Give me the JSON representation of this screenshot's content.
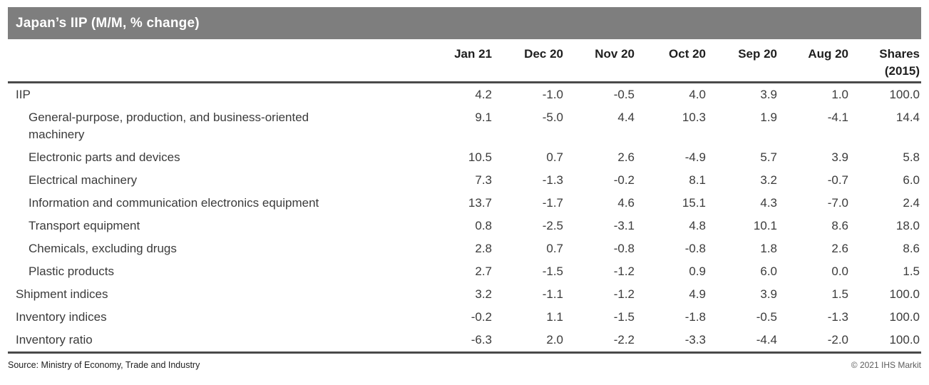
{
  "title": "Japan’s IIP (M/M, % change)",
  "colors": {
    "title_bar_bg": "#7e7e7e",
    "title_text": "#ffffff",
    "rule": "#4a4a4a",
    "body_text": "#3b3b3b"
  },
  "footer": {
    "source": "Source: Ministry of Economy, Trade and Industry",
    "copyright": "© 2021 IHS Markit"
  },
  "chart_data": {
    "type": "table",
    "title": "Japan’s IIP (M/M, % change)",
    "columns": [
      {
        "label": "Jan 21",
        "sublabel": ""
      },
      {
        "label": "Dec 20",
        "sublabel": ""
      },
      {
        "label": "Nov 20",
        "sublabel": ""
      },
      {
        "label": "Oct 20",
        "sublabel": ""
      },
      {
        "label": "Sep 20",
        "sublabel": ""
      },
      {
        "label": "Aug 20",
        "sublabel": ""
      },
      {
        "label": "Shares",
        "sublabel": "(2015)"
      }
    ],
    "rows": [
      {
        "label": "IIP",
        "indent": false,
        "values": [
          "4.2",
          "-1.0",
          "-0.5",
          "4.0",
          "3.9",
          "1.0",
          "100.0"
        ]
      },
      {
        "label": "General-purpose, production, and business-oriented machinery",
        "indent": true,
        "values": [
          "9.1",
          "-5.0",
          "4.4",
          "10.3",
          "1.9",
          "-4.1",
          "14.4"
        ]
      },
      {
        "label": "Electronic parts and devices",
        "indent": true,
        "values": [
          "10.5",
          "0.7",
          "2.6",
          "-4.9",
          "5.7",
          "3.9",
          "5.8"
        ]
      },
      {
        "label": "Electrical machinery",
        "indent": true,
        "values": [
          "7.3",
          "-1.3",
          "-0.2",
          "8.1",
          "3.2",
          "-0.7",
          "6.0"
        ]
      },
      {
        "label": "Information and communication electronics equipment",
        "indent": true,
        "values": [
          "13.7",
          "-1.7",
          "4.6",
          "15.1",
          "4.3",
          "-7.0",
          "2.4"
        ]
      },
      {
        "label": "Transport equipment",
        "indent": true,
        "values": [
          "0.8",
          "-2.5",
          "-3.1",
          "4.8",
          "10.1",
          "8.6",
          "18.0"
        ]
      },
      {
        "label": "Chemicals, excluding drugs",
        "indent": true,
        "values": [
          "2.8",
          "0.7",
          "-0.8",
          "-0.8",
          "1.8",
          "2.6",
          "8.6"
        ]
      },
      {
        "label": "Plastic products",
        "indent": true,
        "values": [
          "2.7",
          "-1.5",
          "-1.2",
          "0.9",
          "6.0",
          "0.0",
          "1.5"
        ]
      },
      {
        "label": "Shipment indices",
        "indent": false,
        "values": [
          "3.2",
          "-1.1",
          "-1.2",
          "4.9",
          "3.9",
          "1.5",
          "100.0"
        ]
      },
      {
        "label": "Inventory indices",
        "indent": false,
        "values": [
          "-0.2",
          "1.1",
          "-1.5",
          "-1.8",
          "-0.5",
          "-1.3",
          "100.0"
        ]
      },
      {
        "label": "Inventory ratio",
        "indent": false,
        "values": [
          "-6.3",
          "2.0",
          "-2.2",
          "-3.3",
          "-4.4",
          "-2.0",
          "100.0"
        ]
      }
    ]
  }
}
